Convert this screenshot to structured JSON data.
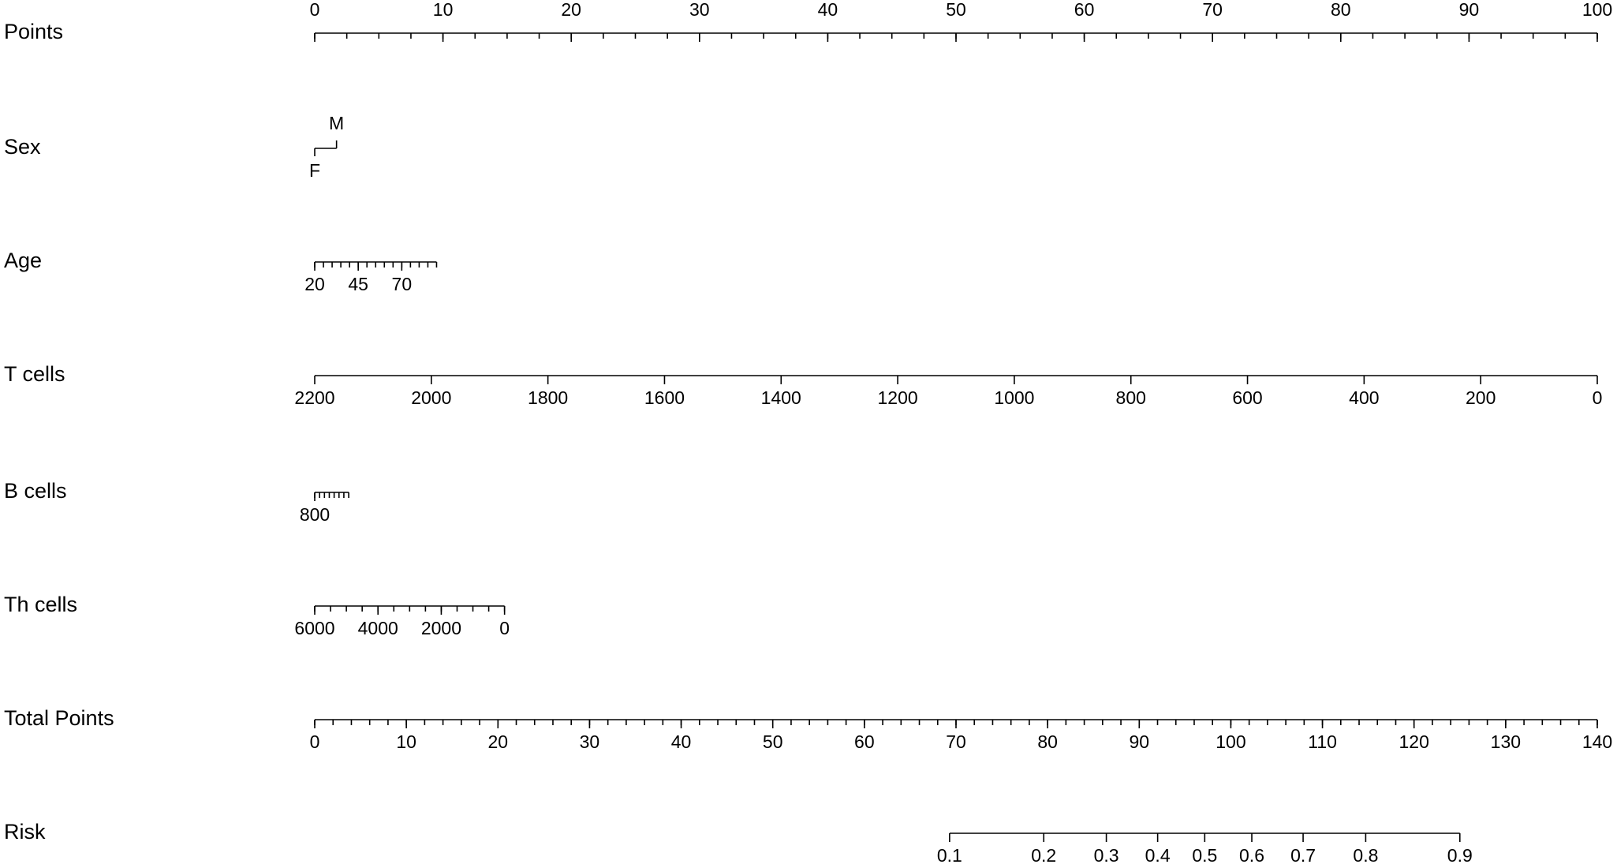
{
  "chart_data": {
    "type": "nomogram",
    "rows": [
      {
        "name": "Points",
        "lim": [
          0,
          100
        ],
        "tick_labels": "above",
        "ticks": [
          0,
          10,
          20,
          30,
          40,
          50,
          60,
          70,
          80,
          90,
          100
        ],
        "minor_ticks": [
          0,
          2.5,
          5,
          7.5,
          10,
          12.5,
          15,
          17.5,
          20,
          22.5,
          25,
          27.5,
          30,
          32.5,
          35,
          37.5,
          40,
          42.5,
          45,
          47.5,
          50,
          52.5,
          55,
          57.5,
          60,
          62.5,
          65,
          67.5,
          70,
          72.5,
          75,
          77.5,
          80,
          82.5,
          85,
          87.5,
          90,
          92.5,
          95,
          97.5,
          100
        ]
      },
      {
        "name": "Sex",
        "categories": [
          "F",
          "M"
        ],
        "points": [
          0,
          1.7
        ]
      },
      {
        "name": "Age",
        "lim": [
          20,
          90
        ],
        "points": [
          0,
          9.5
        ],
        "ticks": [
          20,
          45,
          70
        ],
        "minor_ticks": [
          20,
          25,
          30,
          35,
          40,
          45,
          50,
          55,
          60,
          65,
          70,
          75,
          80,
          85,
          90
        ]
      },
      {
        "name": "T cells",
        "lim": [
          2200,
          0
        ],
        "points": [
          0,
          100
        ],
        "ticks": [
          2200,
          2000,
          1800,
          1600,
          1400,
          1200,
          1000,
          800,
          600,
          400,
          200,
          0
        ]
      },
      {
        "name": "B cells",
        "lim": [
          800,
          100
        ],
        "points": [
          0,
          2.65
        ],
        "ticks": [
          800
        ],
        "minor_ticks": [
          800,
          700,
          600,
          500,
          400,
          300,
          200,
          100
        ]
      },
      {
        "name": "Th cells",
        "lim": [
          6000,
          0
        ],
        "points": [
          0,
          14.8
        ],
        "ticks": [
          6000,
          4000,
          2000,
          0
        ],
        "minor_ticks": [
          6000,
          5500,
          5000,
          4500,
          4000,
          3500,
          3000,
          2500,
          2000,
          1500,
          1000,
          500,
          0
        ]
      },
      {
        "name": "Total Points",
        "lim": [
          0,
          140
        ],
        "ticks": [
          0,
          10,
          20,
          30,
          40,
          50,
          60,
          70,
          80,
          90,
          100,
          110,
          120,
          130,
          140
        ],
        "minor_ticks": [
          0,
          2,
          4,
          6,
          8,
          10,
          12,
          14,
          16,
          18,
          20,
          22,
          24,
          26,
          28,
          30,
          32,
          34,
          36,
          38,
          40,
          42,
          44,
          46,
          48,
          50,
          52,
          54,
          56,
          58,
          60,
          62,
          64,
          66,
          68,
          70,
          72,
          74,
          76,
          78,
          80,
          82,
          84,
          86,
          88,
          90,
          92,
          94,
          96,
          98,
          100,
          102,
          104,
          106,
          108,
          110,
          112,
          114,
          116,
          118,
          120,
          122,
          124,
          126,
          128,
          130,
          132,
          134,
          136,
          138,
          140
        ]
      },
      {
        "name": "Risk",
        "lim": [
          0.1,
          0.9
        ],
        "scale": "logit",
        "total_points": [
          69.3,
          125
        ],
        "ticks": [
          0.1,
          0.2,
          0.3,
          0.4,
          0.5,
          0.6,
          0.7,
          0.8,
          0.9
        ]
      }
    ]
  }
}
